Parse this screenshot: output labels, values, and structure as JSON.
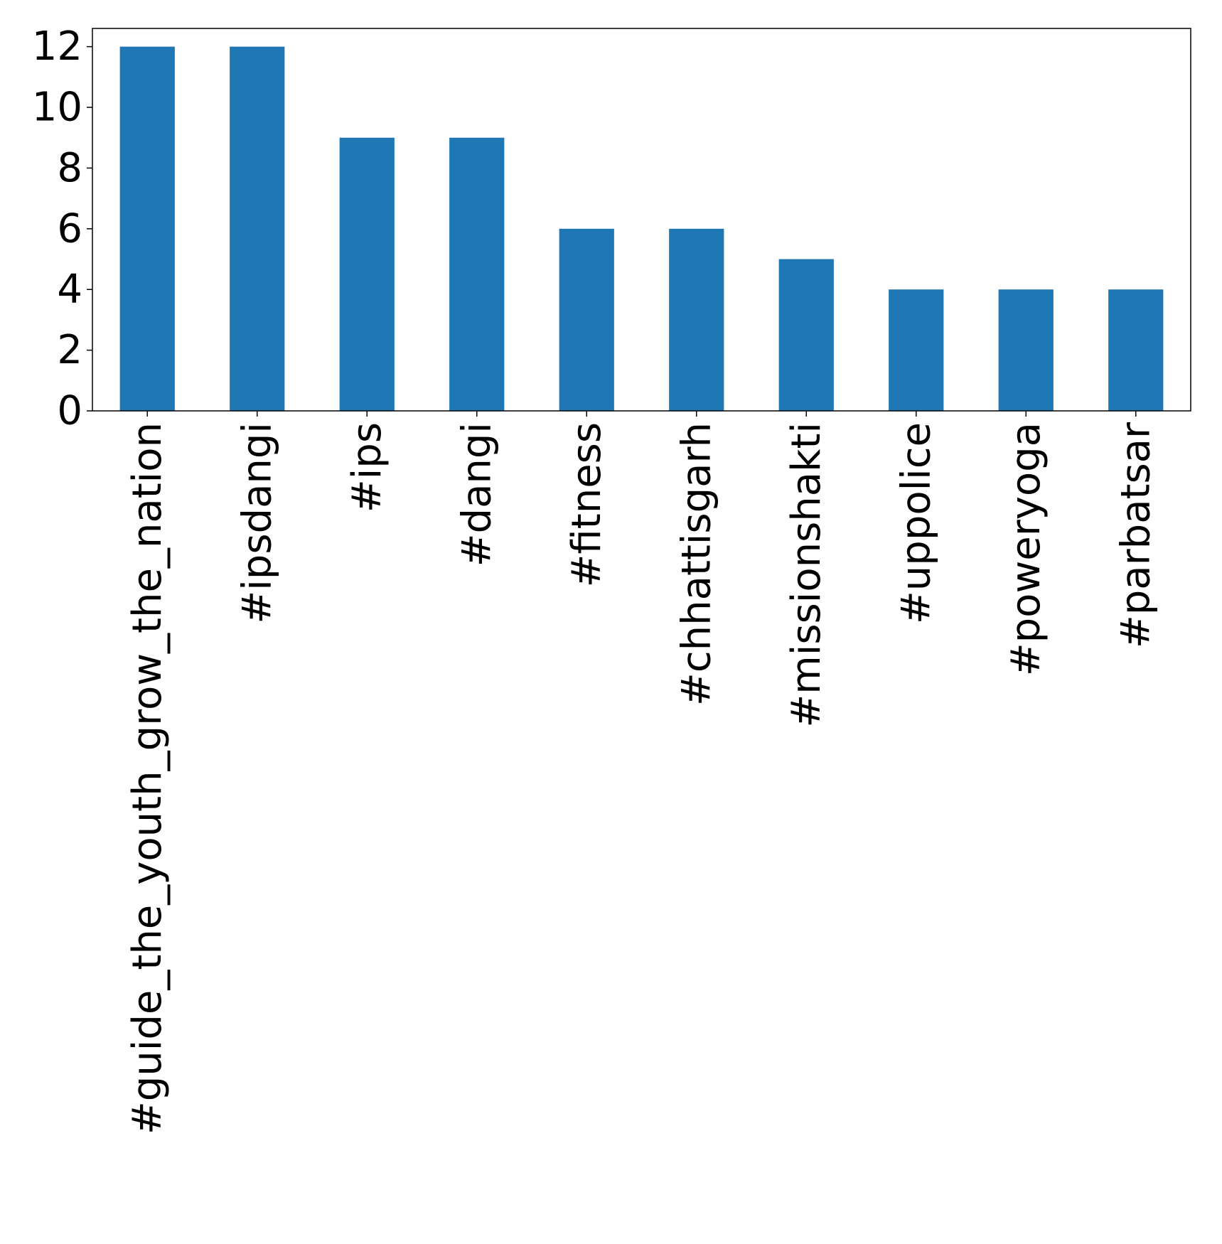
{
  "chart_data": {
    "type": "bar",
    "title": "",
    "xlabel": "",
    "ylabel": "",
    "categories": [
      "#guide_the_youth_grow_the_nation",
      "#ipsdangi",
      "#ips",
      "#dangi",
      "#fitness",
      "#chhattisgarh",
      "#missionshakti",
      "#uppolice",
      "#poweryoga",
      "#parbatsar"
    ],
    "values": [
      12,
      12,
      9,
      9,
      6,
      6,
      5,
      4,
      4,
      4
    ],
    "ylim": [
      0,
      12.6
    ],
    "yticks": [
      0,
      2,
      4,
      6,
      8,
      10,
      12
    ],
    "grid": false,
    "legend": "none",
    "bar_color": "#1f77b4"
  }
}
